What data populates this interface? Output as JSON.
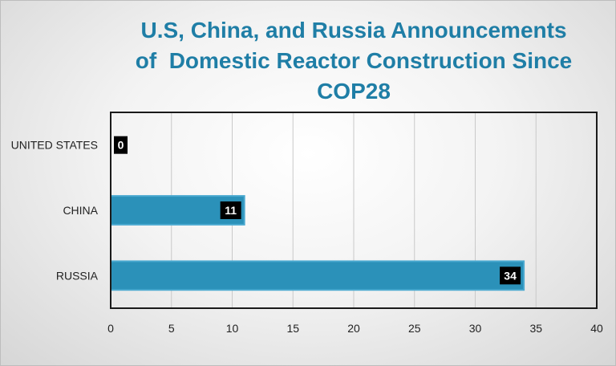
{
  "chart_data": {
    "type": "bar",
    "orientation": "horizontal",
    "title_lines": [
      "U.S, China, and Russia Announcements",
      "of  Domestic Reactor Construction Since",
      "COP28"
    ],
    "categories": [
      "UNITED STATES",
      "CHINA",
      "RUSSIA"
    ],
    "values": [
      0,
      11,
      34
    ],
    "data_labels": [
      "0",
      "11",
      "34"
    ],
    "xlim": [
      0,
      40
    ],
    "xticks": [
      "0",
      "5",
      "10",
      "15",
      "20",
      "25",
      "30",
      "35",
      "40"
    ],
    "xlabel": "",
    "ylabel": "",
    "grid": "vertical",
    "bar_color": "#2b91b9",
    "bar_edge_color": "#4aa9d0",
    "title_color": "#1f7ea6",
    "label_box_color": "#000000"
  }
}
